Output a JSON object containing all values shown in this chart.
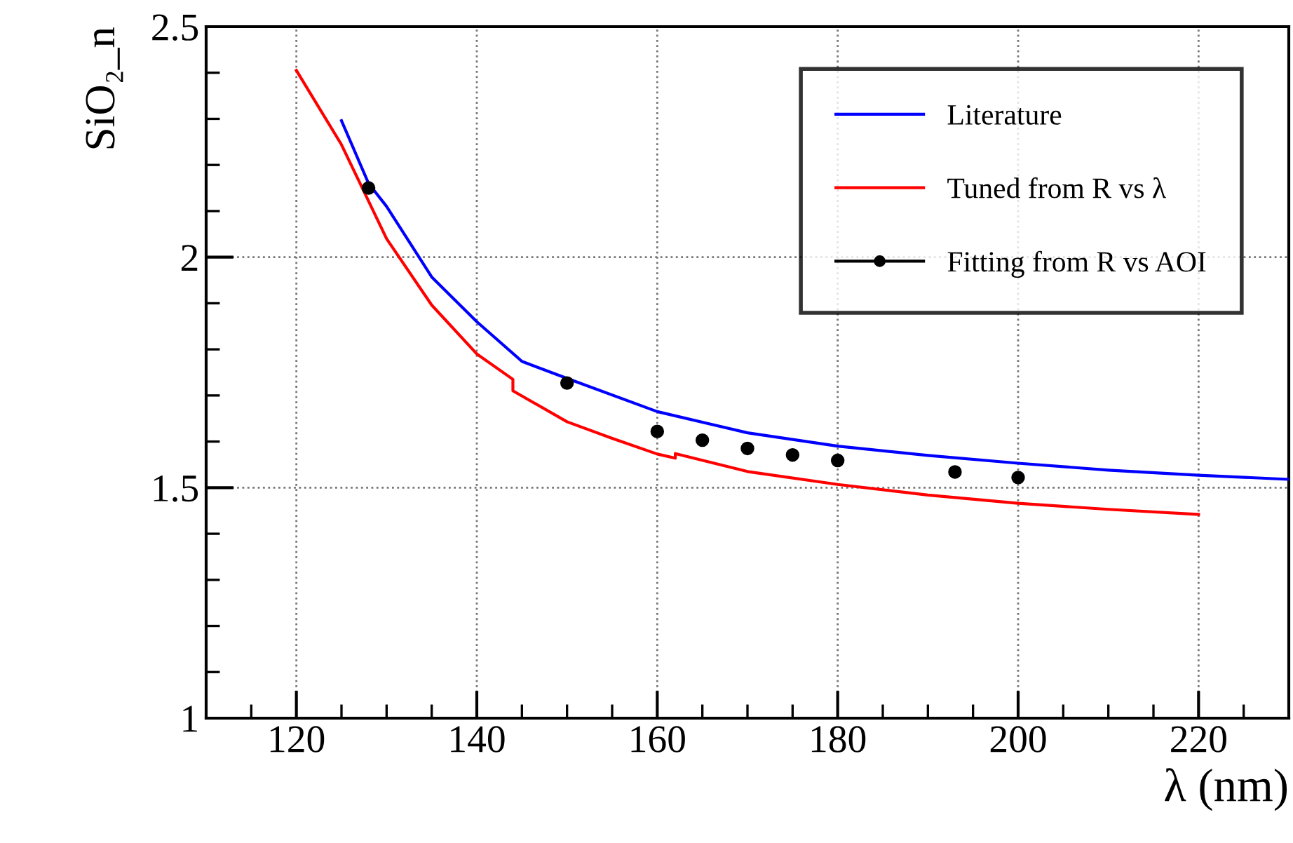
{
  "chart_data": {
    "type": "line",
    "xlabel": "λ (nm)",
    "ylabel": "SiO₂_n",
    "xlim": [
      110,
      230
    ],
    "xticks": [
      120,
      140,
      160,
      180,
      200,
      220
    ],
    "ylim": [
      1,
      2.5
    ],
    "yticks": [
      1,
      1.5,
      2,
      2.5
    ],
    "grid": true,
    "legend": "top right",
    "series": [
      {
        "name": "Literature",
        "color": "#0000ff",
        "x": [
          125,
          128,
          130,
          135,
          140,
          145,
          150,
          160,
          170,
          180,
          190,
          200,
          210,
          220,
          230
        ],
        "values": [
          2.296,
          2.16,
          2.11,
          1.957,
          1.86,
          1.774,
          1.737,
          1.665,
          1.619,
          1.59,
          1.57,
          1.553,
          1.538,
          1.527,
          1.518
        ]
      },
      {
        "name": "Tuned from R vs λ",
        "color": "#ff0000",
        "x": [
          120,
          125,
          130,
          135,
          140,
          144,
          144,
          150,
          155,
          160,
          162,
          162,
          170,
          180,
          190,
          200,
          210,
          220
        ],
        "values": [
          2.405,
          2.244,
          2.04,
          1.896,
          1.79,
          1.735,
          1.71,
          1.643,
          1.607,
          1.573,
          1.564,
          1.574,
          1.535,
          1.507,
          1.484,
          1.466,
          1.453,
          1.442
        ]
      },
      {
        "name": "Fitting from R vs AOI",
        "color": "#000000",
        "type": "scatter",
        "marker": "circle",
        "x": [
          128,
          150,
          160,
          165,
          170,
          175,
          180,
          193,
          200
        ],
        "values": [
          2.15,
          1.727,
          1.622,
          1.603,
          1.585,
          1.571,
          1.559,
          1.534,
          1.522
        ]
      }
    ]
  }
}
